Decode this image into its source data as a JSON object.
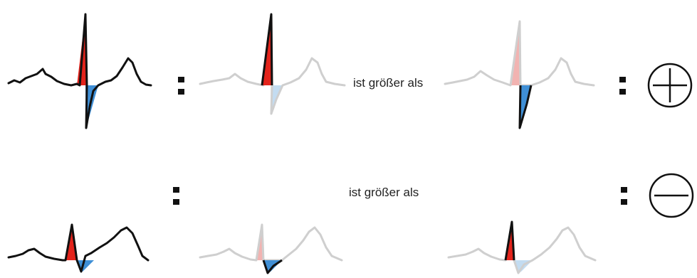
{
  "colors": {
    "positive_fill": "#e3231b",
    "negative_fill": "#3f8fd6",
    "positive_fill_faded": "#f2b3b1",
    "negative_fill_faded": "#c3dcf1",
    "trace": "#111111",
    "trace_faded": "#cfcfcf"
  },
  "rows": [
    {
      "sign": "plus",
      "sign_icon": "plus-circle-icon",
      "comparison_text": "ist größer als",
      "emphasized_lobe_left": "positive",
      "emphasized_lobe_right": "negative"
    },
    {
      "sign": "minus",
      "sign_icon": "minus-circle-icon",
      "comparison_text": "ist größer als",
      "emphasized_lobe_left": "negative",
      "emphasized_lobe_right": "positive"
    }
  ]
}
